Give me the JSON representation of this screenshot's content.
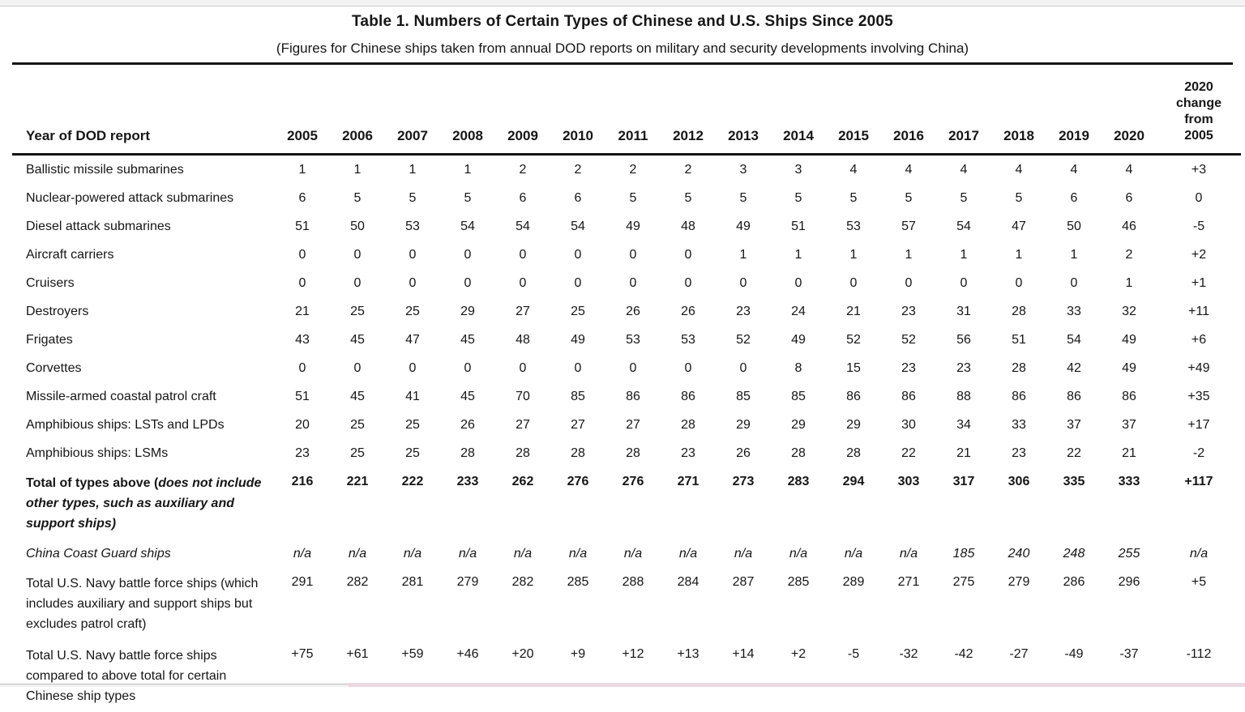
{
  "page": {
    "title": "Table 1. Numbers of Certain Types of Chinese and U.S. Ships Since 2005",
    "subtitle": "(Figures for Chinese ships taken from annual DOD reports on military and security developments involving China)"
  },
  "table": {
    "label_header": "Year of DOD report",
    "year_columns": [
      "2005",
      "2006",
      "2007",
      "2008",
      "2009",
      "2010",
      "2011",
      "2012",
      "2013",
      "2014",
      "2015",
      "2016",
      "2017",
      "2018",
      "2019",
      "2020"
    ],
    "change_header": "2020 change from 2005",
    "rows": [
      {
        "label": "Ballistic missile submarines",
        "style": "normal",
        "values": [
          "1",
          "1",
          "1",
          "1",
          "2",
          "2",
          "2",
          "2",
          "3",
          "3",
          "4",
          "4",
          "4",
          "4",
          "4",
          "4"
        ],
        "change": "+3"
      },
      {
        "label": "Nuclear-powered attack submarines",
        "style": "normal",
        "values": [
          "6",
          "5",
          "5",
          "5",
          "6",
          "6",
          "5",
          "5",
          "5",
          "5",
          "5",
          "5",
          "5",
          "5",
          "6",
          "6"
        ],
        "change": "0"
      },
      {
        "label": "Diesel attack submarines",
        "style": "normal",
        "values": [
          "51",
          "50",
          "53",
          "54",
          "54",
          "54",
          "49",
          "48",
          "49",
          "51",
          "53",
          "57",
          "54",
          "47",
          "50",
          "46"
        ],
        "change": "-5"
      },
      {
        "label": "Aircraft carriers",
        "style": "normal",
        "values": [
          "0",
          "0",
          "0",
          "0",
          "0",
          "0",
          "0",
          "0",
          "1",
          "1",
          "1",
          "1",
          "1",
          "1",
          "1",
          "2"
        ],
        "change": "+2"
      },
      {
        "label": "Cruisers",
        "style": "normal",
        "values": [
          "0",
          "0",
          "0",
          "0",
          "0",
          "0",
          "0",
          "0",
          "0",
          "0",
          "0",
          "0",
          "0",
          "0",
          "0",
          "1"
        ],
        "change": "+1"
      },
      {
        "label": "Destroyers",
        "style": "normal",
        "values": [
          "21",
          "25",
          "25",
          "29",
          "27",
          "25",
          "26",
          "26",
          "23",
          "24",
          "21",
          "23",
          "31",
          "28",
          "33",
          "32"
        ],
        "change": "+11"
      },
      {
        "label": "Frigates",
        "style": "normal",
        "values": [
          "43",
          "45",
          "47",
          "45",
          "48",
          "49",
          "53",
          "53",
          "52",
          "49",
          "52",
          "52",
          "56",
          "51",
          "54",
          "49"
        ],
        "change": "+6"
      },
      {
        "label": "Corvettes",
        "style": "normal",
        "values": [
          "0",
          "0",
          "0",
          "0",
          "0",
          "0",
          "0",
          "0",
          "0",
          "8",
          "15",
          "23",
          "23",
          "28",
          "42",
          "49"
        ],
        "change": "+49"
      },
      {
        "label": "Missile-armed coastal patrol craft",
        "style": "normal",
        "values": [
          "51",
          "45",
          "41",
          "45",
          "70",
          "85",
          "86",
          "86",
          "85",
          "85",
          "86",
          "86",
          "88",
          "86",
          "86",
          "86"
        ],
        "change": "+35"
      },
      {
        "label": "Amphibious ships: LSTs and LPDs",
        "style": "normal",
        "values": [
          "20",
          "25",
          "25",
          "26",
          "27",
          "27",
          "27",
          "28",
          "29",
          "29",
          "29",
          "30",
          "34",
          "33",
          "37",
          "37"
        ],
        "change": "+17"
      },
      {
        "label": "Amphibious ships: LSMs",
        "style": "normal",
        "values": [
          "23",
          "25",
          "25",
          "28",
          "28",
          "28",
          "28",
          "23",
          "26",
          "28",
          "28",
          "22",
          "21",
          "23",
          "22",
          "21"
        ],
        "change": "-2"
      },
      {
        "label_prefix": "Total of types above (",
        "label_italic": "does not include other types, such as auxiliary and support ships)",
        "style": "bold",
        "tall": true,
        "values": [
          "216",
          "221",
          "222",
          "233",
          "262",
          "276",
          "276",
          "271",
          "273",
          "283",
          "294",
          "303",
          "317",
          "306",
          "335",
          "333"
        ],
        "change": "+117"
      },
      {
        "label": "China Coast Guard ships",
        "style": "italic",
        "values": [
          "n/a",
          "n/a",
          "n/a",
          "n/a",
          "n/a",
          "n/a",
          "n/a",
          "n/a",
          "n/a",
          "n/a",
          "n/a",
          "n/a",
          "185",
          "240",
          "248",
          "255"
        ],
        "change": "n/a"
      },
      {
        "label": "Total U.S. Navy battle force ships (which includes auxiliary and support ships but excludes patrol craft)",
        "style": "normal",
        "tall": true,
        "values": [
          "291",
          "282",
          "281",
          "279",
          "282",
          "285",
          "288",
          "284",
          "287",
          "285",
          "289",
          "271",
          "275",
          "279",
          "286",
          "296"
        ],
        "change": "+5"
      },
      {
        "label": "Total U.S. Navy battle force ships compared to above total for certain Chinese ship types",
        "style": "normal",
        "tall": true,
        "values": [
          "+75",
          "+61",
          "+59",
          "+46",
          "+20",
          "+9",
          "+12",
          "+13",
          "+14",
          "+2",
          "-5",
          "-32",
          "-42",
          "-27",
          "-49",
          "-37"
        ],
        "change": "-112"
      }
    ]
  }
}
